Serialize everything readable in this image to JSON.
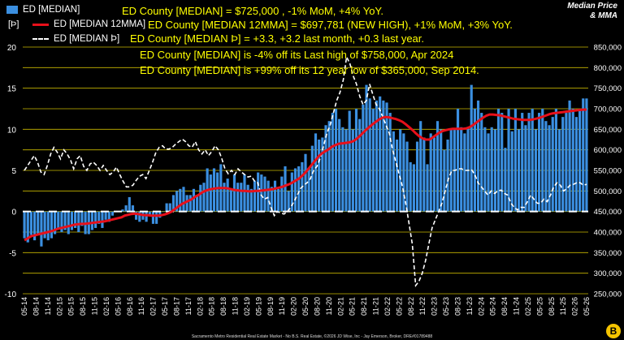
{
  "header": {
    "title": "Median Price",
    "subtitle": "& MMA",
    "y_left_unit": "[Þ]"
  },
  "legend": [
    {
      "name": "ED [MEDIAN]",
      "type": "bar",
      "color": "#3b8fe0"
    },
    {
      "name": "ED [MEDIAN 12MMA]",
      "type": "line",
      "color": "#e8101a"
    },
    {
      "name": "ED [MEDIAN Þ]",
      "type": "dashed-line",
      "color": "#ffffff"
    }
  ],
  "annotations": {
    "l1": "ED County [MEDIAN] = $725,000 , -1% MoM, +4% YoY.",
    "l2": "ED County [MEDIAN 12MMA] = $697,781 (NEW HIGH), +1% MoM, +3% YoY.",
    "l3": "ED County [MEDIAN Þ] = +3.3, +3.2 last month, +0.3 last year.",
    "l4": "ED County [MEDIAN] is -4% off its Last high of $758,000, Apr 2024",
    "l5": "ED County [MEDIAN] is +99% off its 12 year low of $365,000, Sep 2014."
  },
  "footer": "Sacramento Metro Residential Real Estate Market - No B.S. Real Estate, ©2026 JD Wise, Inc - Jay Emerson, Broker, DRE#01789488",
  "brand_mark": "B",
  "colors": {
    "background": "#000000",
    "bar": "#3b8fe0",
    "mma": "#e8101a",
    "osc": "#ffffff",
    "grid": "#c9b800",
    "text_accent": "#ffff00"
  },
  "chart_data": {
    "type": "bar",
    "x_start": "05-14",
    "x_end": "05-26",
    "x_tick_labels": [
      "05-14",
      "08-14",
      "11-14",
      "02-15",
      "05-15",
      "08-15",
      "11-15",
      "02-16",
      "05-16",
      "08-16",
      "11-16",
      "02-17",
      "05-17",
      "08-17",
      "11-17",
      "02-18",
      "05-18",
      "08-18",
      "11-18",
      "02-19",
      "05-19",
      "08-19",
      "11-19",
      "02-20",
      "05-20",
      "08-20",
      "11-20",
      "02-21",
      "05-21",
      "08-21",
      "11-21",
      "02-22",
      "05-22",
      "08-22",
      "11-22",
      "02-23",
      "05-23",
      "08-23",
      "11-23",
      "02-24",
      "05-24",
      "08-24",
      "11-24",
      "02-25",
      "05-25",
      "08-25",
      "11-25",
      "02-26",
      "05-26"
    ],
    "y_left": {
      "min": -10,
      "max": 20,
      "ticks": [
        -10,
        -5,
        0,
        5,
        10,
        15,
        20
      ]
    },
    "y_right": {
      "min": 250000,
      "max": 850000,
      "ticks": [
        250000,
        300000,
        350000,
        400000,
        450000,
        500000,
        550000,
        600000,
        650000,
        700000,
        750000,
        800000,
        850000
      ]
    },
    "series": [
      {
        "name": "ED [MEDIAN]",
        "axis": "right",
        "style": "bar",
        "values": [
          385000,
          375000,
          393000,
          380000,
          395000,
          365000,
          385000,
          380000,
          385000,
          395000,
          410000,
          400000,
          405000,
          395000,
          405000,
          410000,
          400000,
          415000,
          395000,
          395000,
          405000,
          410000,
          420000,
          410000,
          430000,
          425000,
          440000,
          450000,
          450000,
          455000,
          465000,
          485000,
          465000,
          430000,
          425000,
          430000,
          425000,
          440000,
          420000,
          420000,
          435000,
          450000,
          470000,
          470000,
          490000,
          500000,
          505000,
          510000,
          490000,
          490000,
          505000,
          490000,
          515000,
          520000,
          555000,
          540000,
          555000,
          545000,
          565000,
          520000,
          530000,
          505000,
          540000,
          520000,
          520000,
          540000,
          515000,
          505000,
          525000,
          545000,
          540000,
          535000,
          525000,
          510000,
          525000,
          505000,
          535000,
          560000,
          500000,
          545000,
          555000,
          560000,
          570000,
          590000,
          555000,
          610000,
          640000,
          625000,
          630000,
          660000,
          670000,
          690000,
          700000,
          675000,
          655000,
          650000,
          695000,
          650000,
          700000,
          675000,
          710000,
          758000,
          725000,
          700000,
          720000,
          730000,
          720000,
          715000,
          690000,
          645000,
          625000,
          650000,
          640000,
          620000,
          570000,
          565000,
          620000,
          670000,
          630000,
          565000,
          640000,
          630000,
          670000,
          650000,
          600000,
          625000,
          650000,
          650000,
          700000,
          655000,
          640000,
          655000,
          758000,
          700000,
          720000,
          690000,
          655000,
          640000,
          655000,
          650000,
          700000,
          690000,
          605000,
          700000,
          645000,
          700000,
          650000,
          690000,
          660000,
          690000,
          700000,
          650000,
          690000,
          700000,
          670000,
          660000,
          680000,
          700000,
          650000,
          680000,
          690000,
          720000,
          700000,
          680000,
          700000,
          725000,
          725000
        ]
      },
      {
        "name": "ED [MEDIAN 12MMA]",
        "axis": "right",
        "style": "line",
        "values": [
          380000,
          385000,
          390000,
          392000,
          394000,
          396000,
          398000,
          400000,
          402000,
          405000,
          408000,
          410000,
          412000,
          414000,
          416000,
          418000,
          419000,
          420000,
          420000,
          421000,
          422000,
          423000,
          424000,
          425000,
          426000,
          428000,
          430000,
          432000,
          434000,
          436000,
          440000,
          442000,
          444000,
          445000,
          444000,
          442000,
          441000,
          441000,
          440000,
          440000,
          440000,
          441000,
          443000,
          446000,
          450000,
          456000,
          462000,
          468000,
          472000,
          476000,
          480000,
          486000,
          490000,
          496000,
          500000,
          503000,
          505000,
          506000,
          507000,
          507000,
          507000,
          506000,
          504000,
          502000,
          501000,
          500000,
          500000,
          499000,
          499000,
          500000,
          500000,
          501000,
          502000,
          503000,
          504000,
          506000,
          508000,
          510000,
          513000,
          516000,
          520000,
          525000,
          530000,
          537000,
          545000,
          555000,
          565000,
          575000,
          585000,
          592000,
          597000,
          602000,
          608000,
          612000,
          615000,
          616000,
          617000,
          618000,
          620000,
          625000,
          632000,
          640000,
          648000,
          655000,
          662000,
          668000,
          674000,
          678000,
          680000,
          679000,
          677000,
          675000,
          672000,
          668000,
          662000,
          655000,
          648000,
          640000,
          633000,
          628000,
          625000,
          625000,
          630000,
          636000,
          642000,
          646000,
          648000,
          650000,
          651000,
          651000,
          651000,
          651000,
          652000,
          655000,
          660000,
          666000,
          672000,
          678000,
          683000,
          686000,
          686000,
          685000,
          684000,
          682000,
          680000,
          678000,
          676000,
          675000,
          674000,
          673000,
          673000,
          673000,
          674000,
          676000,
          678000,
          681000,
          684000,
          687000,
          689000,
          690000,
          691000,
          692000,
          693000,
          694000,
          695000,
          696000,
          697000,
          697781,
          697781
        ]
      },
      {
        "name": "ED [MEDIAN Þ]",
        "axis": "left",
        "style": "dashed",
        "values": [
          5.0,
          5.6,
          6.2,
          6.8,
          6.0,
          4.8,
          4.5,
          5.6,
          7.0,
          7.8,
          7.2,
          6.4,
          7.5,
          7.0,
          6.3,
          5.2,
          6.4,
          6.8,
          5.5,
          5.0,
          5.8,
          6.0,
          5.6,
          5.0,
          5.6,
          5.0,
          4.5,
          4.8,
          5.4,
          4.5,
          3.7,
          3.0,
          3.0,
          3.2,
          3.8,
          4.3,
          4.5,
          4.0,
          5.0,
          6.0,
          7.2,
          7.8,
          8.0,
          7.6,
          7.6,
          7.8,
          8.2,
          8.5,
          8.8,
          8.5,
          8.0,
          7.8,
          8.5,
          7.5,
          7.0,
          7.5,
          6.8,
          7.3,
          8.0,
          7.5,
          6.5,
          5.2,
          4.6,
          5.0,
          4.5,
          5.2,
          4.8,
          4.5,
          4.2,
          4.3,
          3.7,
          3.5,
          2.0,
          1.5,
          1.7,
          0.5,
          -0.5,
          0.0,
          -0.2,
          -0.3,
          0.0,
          0.5,
          1.2,
          2.0,
          2.8,
          3.2,
          3.5,
          4.0,
          5.0,
          5.5,
          6.5,
          8.0,
          9.5,
          10.5,
          12.0,
          13.5,
          14.5,
          16.0,
          18.8,
          18.0,
          16.5,
          15.5,
          14.0,
          13.0,
          13.5,
          15.5,
          14.2,
          13.0,
          12.5,
          11.5,
          10.5,
          9.5,
          7.5,
          6.0,
          4.5,
          3.0,
          1.0,
          -1.5,
          -4.0,
          -9.0,
          -8.5,
          -7.5,
          -6.0,
          -4.0,
          -2.0,
          -1.0,
          0.0,
          1.0,
          2.5,
          4.0,
          5.0,
          5.0,
          5.2,
          5.2,
          5.0,
          5.0,
          5.1,
          4.5,
          3.5,
          3.0,
          2.5,
          2.0,
          2.5,
          2.2,
          2.5,
          2.6,
          2.2,
          2.0,
          1.0,
          0.5,
          0.2,
          0.5,
          0.5,
          1.2,
          2.0,
          1.5,
          1.0,
          1.0,
          1.5,
          1.2,
          2.0,
          3.0,
          3.5,
          3.2,
          2.5,
          2.8,
          3.2,
          3.3,
          3.5,
          3.5,
          3.2,
          3.3
        ]
      }
    ],
    "xlabel": "",
    "ylabel_left": "[Þ]",
    "ylabel_right": "",
    "legend_position": "top-left",
    "grid": true
  }
}
